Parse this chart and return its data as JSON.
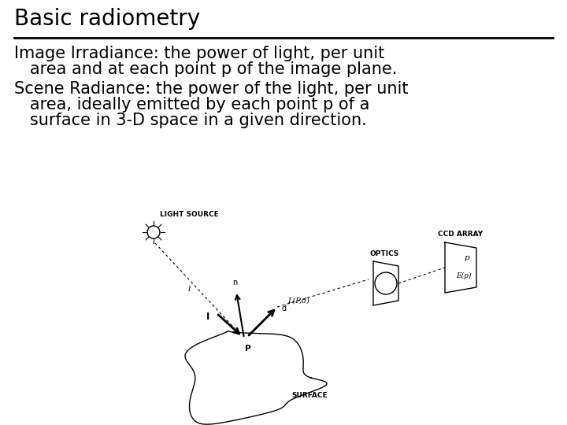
{
  "title": "Basic radiometry",
  "title_fontsize": 20,
  "title_fontweight": "normal",
  "body_fontsize": 15,
  "line1": "Image Irradiance: the power of light, per unit",
  "line2": "   area and at each point p of the image plane.",
  "line3": "Scene Radiance: the power of the light, per unit",
  "line4": "   area, ideally emitted by each point p of a",
  "line5": "   surface in 3-D space in a given direction.",
  "bg_color": "#ffffff",
  "text_color": "#000000",
  "diagram_font": 6.5
}
